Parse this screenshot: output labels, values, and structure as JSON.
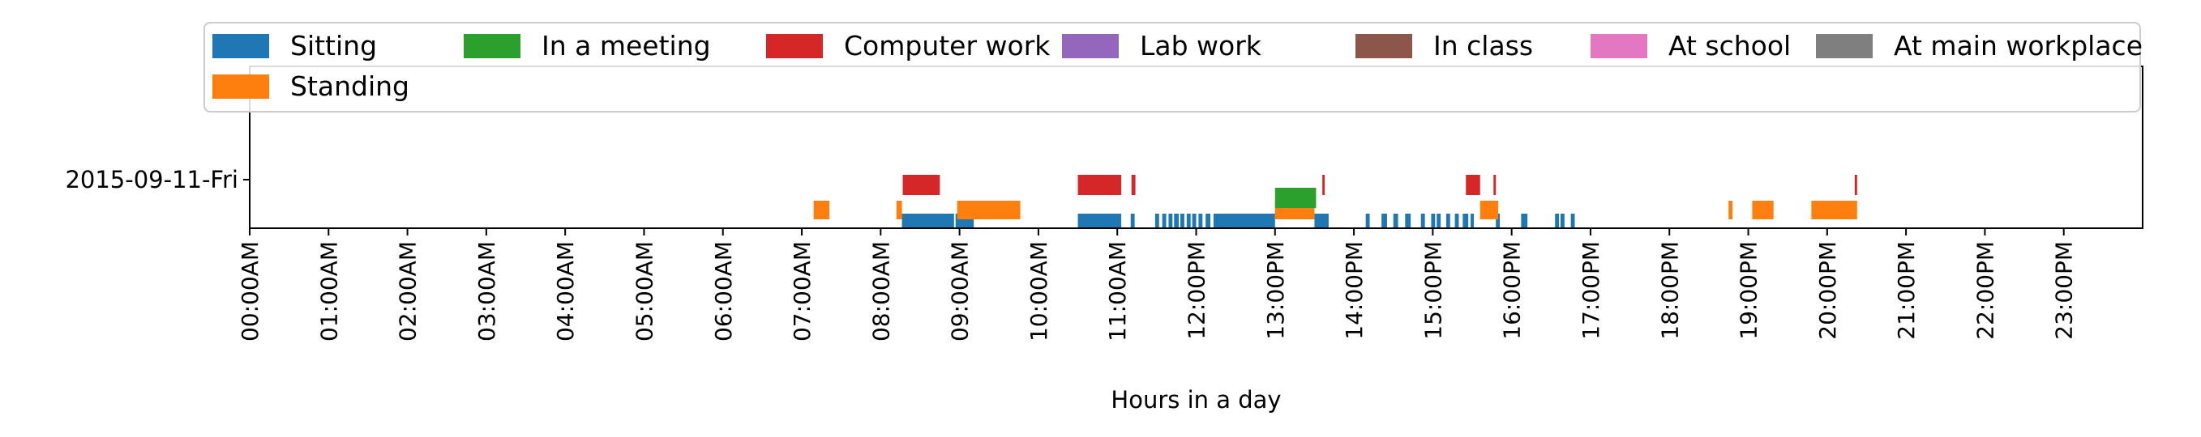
{
  "chart_data": {
    "type": "bar",
    "subtype": "timeline",
    "title": "",
    "xlabel": "Hours in a day",
    "ylabel": "",
    "xlim": [
      0,
      24
    ],
    "x_tick_labels": [
      "00:00AM",
      "01:00AM",
      "02:00AM",
      "03:00AM",
      "04:00AM",
      "05:00AM",
      "06:00AM",
      "07:00AM",
      "08:00AM",
      "09:00AM",
      "10:00AM",
      "11:00AM",
      "12:00PM",
      "13:00PM",
      "14:00PM",
      "15:00PM",
      "16:00PM",
      "17:00PM",
      "18:00PM",
      "19:00PM",
      "20:00PM",
      "21:00PM",
      "22:00PM",
      "23:00PM"
    ],
    "y_categories": [
      "2015-09-11-Fri"
    ],
    "grid": false,
    "legend_position": "top",
    "series": [
      {
        "name": "Sitting",
        "color": "#1f77b4",
        "lane": 0,
        "intervals": [
          [
            8.27,
            8.93
          ],
          [
            8.95,
            9.18
          ],
          [
            10.5,
            11.05
          ],
          [
            11.17,
            11.22
          ],
          [
            11.48,
            11.53
          ],
          [
            11.57,
            11.62
          ],
          [
            11.65,
            11.7
          ],
          [
            11.72,
            11.78
          ],
          [
            11.8,
            11.85
          ],
          [
            11.88,
            11.93
          ],
          [
            11.95,
            12.0
          ],
          [
            12.03,
            12.08
          ],
          [
            12.12,
            12.18
          ],
          [
            12.22,
            13.0
          ],
          [
            13.5,
            13.68
          ],
          [
            14.15,
            14.2
          ],
          [
            14.35,
            14.42
          ],
          [
            14.5,
            14.56
          ],
          [
            14.65,
            14.72
          ],
          [
            14.85,
            14.9
          ],
          [
            14.98,
            15.03
          ],
          [
            15.05,
            15.1
          ],
          [
            15.17,
            15.22
          ],
          [
            15.28,
            15.33
          ],
          [
            15.38,
            15.45
          ],
          [
            15.48,
            15.52
          ],
          [
            15.8,
            15.85
          ],
          [
            16.12,
            16.2
          ],
          [
            16.55,
            16.6
          ],
          [
            16.62,
            16.67
          ],
          [
            16.75,
            16.8
          ]
        ]
      },
      {
        "name": "Standing",
        "color": "#ff7f0e",
        "lane": 1,
        "intervals": [
          [
            7.15,
            7.35
          ],
          [
            8.2,
            8.27
          ],
          [
            8.97,
            9.77
          ],
          [
            13.0,
            13.5
          ],
          [
            15.6,
            15.83
          ],
          [
            18.75,
            18.8
          ],
          [
            19.05,
            19.32
          ],
          [
            19.8,
            20.38
          ]
        ]
      },
      {
        "name": "In a meeting",
        "color": "#2ca02c",
        "lane": 2,
        "intervals": [
          [
            13.0,
            13.52
          ]
        ]
      },
      {
        "name": "Computer work",
        "color": "#d62728",
        "lane": 3,
        "intervals": [
          [
            8.28,
            8.75
          ],
          [
            10.5,
            11.05
          ],
          [
            11.18,
            11.23
          ],
          [
            13.6,
            13.63
          ],
          [
            15.42,
            15.6
          ],
          [
            15.77,
            15.8
          ],
          [
            20.35,
            20.38
          ]
        ]
      },
      {
        "name": "Lab work",
        "color": "#9467bd",
        "lane": 4,
        "intervals": []
      },
      {
        "name": "In class",
        "color": "#8c564b",
        "lane": 5,
        "intervals": []
      },
      {
        "name": "At school",
        "color": "#e377c2",
        "lane": 6,
        "intervals": []
      },
      {
        "name": "At main workplace",
        "color": "#7f7f7f",
        "lane": 7,
        "intervals": []
      }
    ]
  }
}
